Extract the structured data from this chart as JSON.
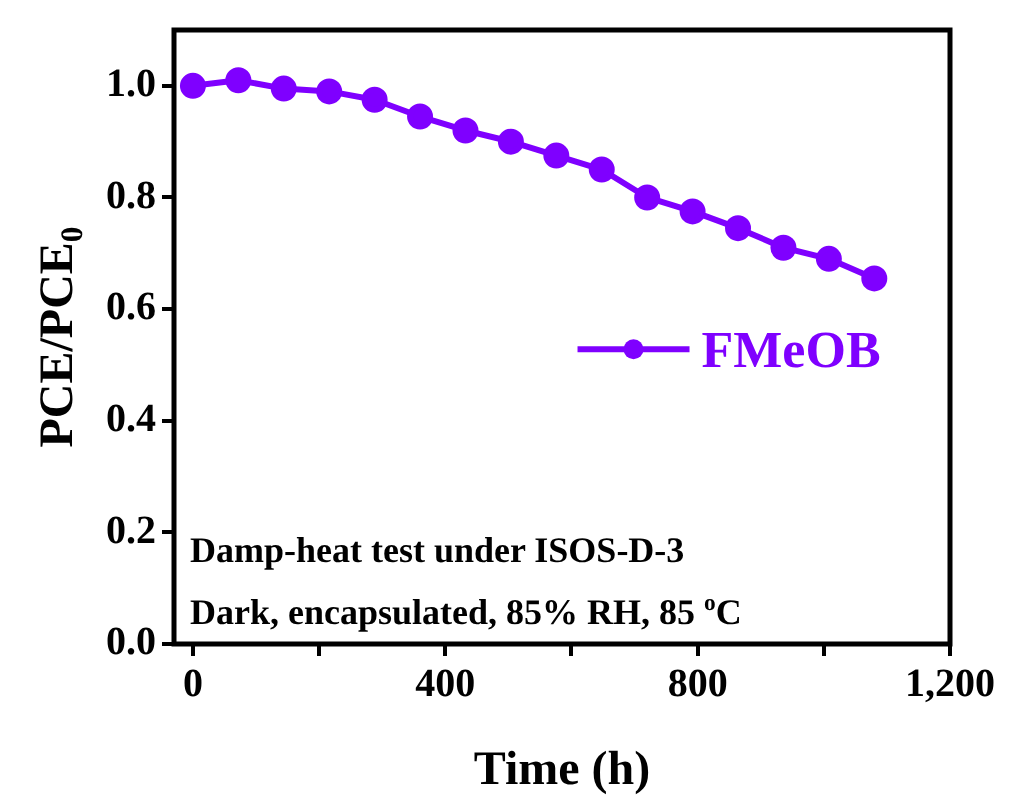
{
  "chart_data": {
    "type": "line",
    "xlabel": "Time (h)",
    "ylabel": "PCE/PCE$_{0}$",
    "x": [
      0,
      72,
      144,
      216,
      288,
      360,
      432,
      504,
      576,
      648,
      720,
      792,
      864,
      936,
      1008,
      1080
    ],
    "series": [
      {
        "name": "FMeOB",
        "color": "#7f00ff",
        "values": [
          1.0,
          1.01,
          0.995,
          0.99,
          0.975,
          0.945,
          0.92,
          0.9,
          0.875,
          0.85,
          0.8,
          0.775,
          0.745,
          0.71,
          0.69,
          0.655
        ]
      }
    ],
    "xlim": [
      -30,
      1200
    ],
    "xticks": [
      0,
      {
        "value": 200,
        "label": null
      },
      400,
      {
        "value": 600,
        "label": null
      },
      800,
      {
        "value": 1000,
        "label": null
      },
      {
        "value": 1200,
        "label": "1,200"
      }
    ],
    "ylim": [
      0,
      1.1
    ],
    "yticks": [
      {
        "value": 0,
        "label": "0.0"
      },
      0.2,
      0.4,
      0.6,
      0.8,
      {
        "value": 1,
        "label": "1.0"
      }
    ],
    "annotations": [
      "Damp-heat test under ISOS-D-3",
      "Dark, encapsulated, 85% RH, 85 $^{o}$C"
    ],
    "legend": "right",
    "grid": false,
    "marker": "circle",
    "line_style": "solid"
  }
}
